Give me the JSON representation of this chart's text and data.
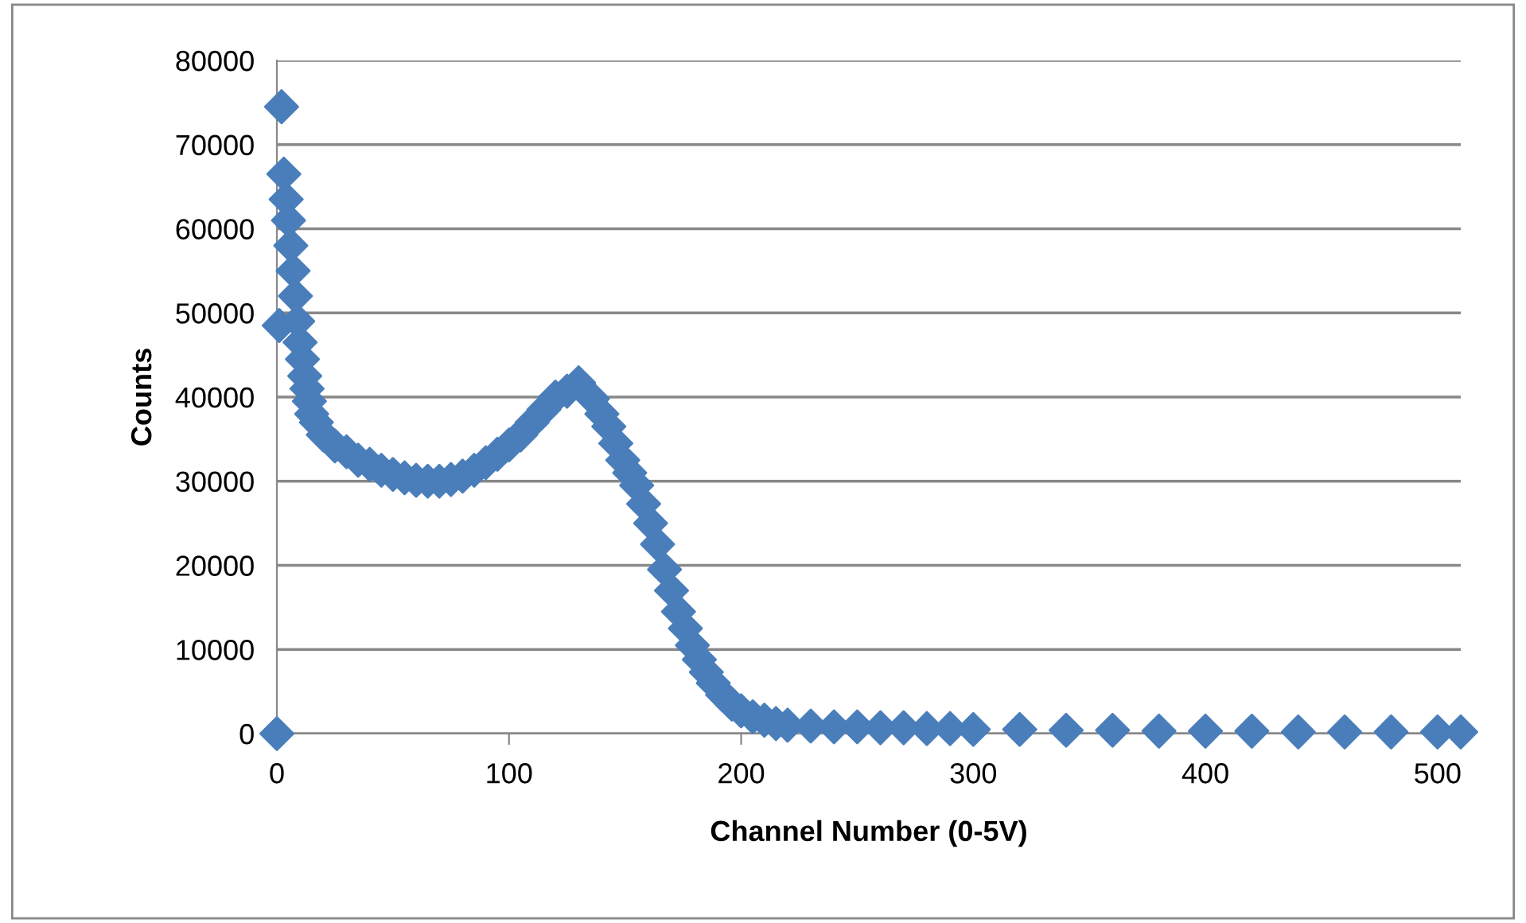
{
  "chart_data": {
    "type": "scatter",
    "xlabel": "Channel Number (0-5V)",
    "ylabel": "Counts",
    "series": [
      {
        "color": "#4a7ebb",
        "x": [
          0,
          1,
          2,
          3,
          4,
          5,
          6,
          7,
          8,
          9,
          10,
          11,
          12,
          13,
          14,
          15,
          17,
          20,
          25,
          30,
          35,
          40,
          45,
          50,
          55,
          60,
          65,
          70,
          75,
          80,
          85,
          90,
          95,
          100,
          105,
          110,
          115,
          120,
          125,
          130,
          136,
          140,
          143,
          146,
          149,
          152,
          155,
          158,
          161,
          164,
          167,
          170,
          173,
          176,
          179,
          182,
          185,
          188,
          192,
          196,
          200,
          205,
          210,
          215,
          220,
          230,
          240,
          250,
          260,
          270,
          280,
          290,
          300,
          320,
          340,
          360,
          380,
          400,
          420,
          440,
          460,
          480,
          500,
          510
        ],
        "values": [
          0,
          48500,
          74500,
          66500,
          63500,
          61000,
          58000,
          55000,
          52000,
          49000,
          46500,
          44500,
          42500,
          41000,
          39500,
          38000,
          37000,
          35500,
          34200,
          33500,
          32500,
          32000,
          31300,
          30800,
          30400,
          30100,
          30000,
          30000,
          30200,
          30600,
          31300,
          32200,
          33200,
          34300,
          35500,
          37000,
          38500,
          40000,
          40700,
          41700,
          39800,
          38000,
          36500,
          34500,
          32500,
          31000,
          29500,
          27300,
          25000,
          22500,
          19500,
          17000,
          14500,
          12500,
          10500,
          8800,
          7300,
          6000,
          4600,
          3500,
          2700,
          2000,
          1600,
          1200,
          1000,
          900,
          800,
          800,
          700,
          700,
          600,
          600,
          500,
          500,
          400,
          400,
          300,
          300,
          300,
          200,
          200,
          200,
          200,
          200
        ]
      }
    ],
    "marker": "diamond",
    "xlim": [
      0,
      510
    ],
    "xticks": [
      0,
      100,
      200,
      300,
      400,
      500
    ],
    "ylim": [
      0,
      80000
    ],
    "yticks": [
      0,
      10000,
      20000,
      30000,
      40000,
      50000,
      60000,
      70000,
      80000
    ],
    "grid": "y",
    "legend": false
  }
}
